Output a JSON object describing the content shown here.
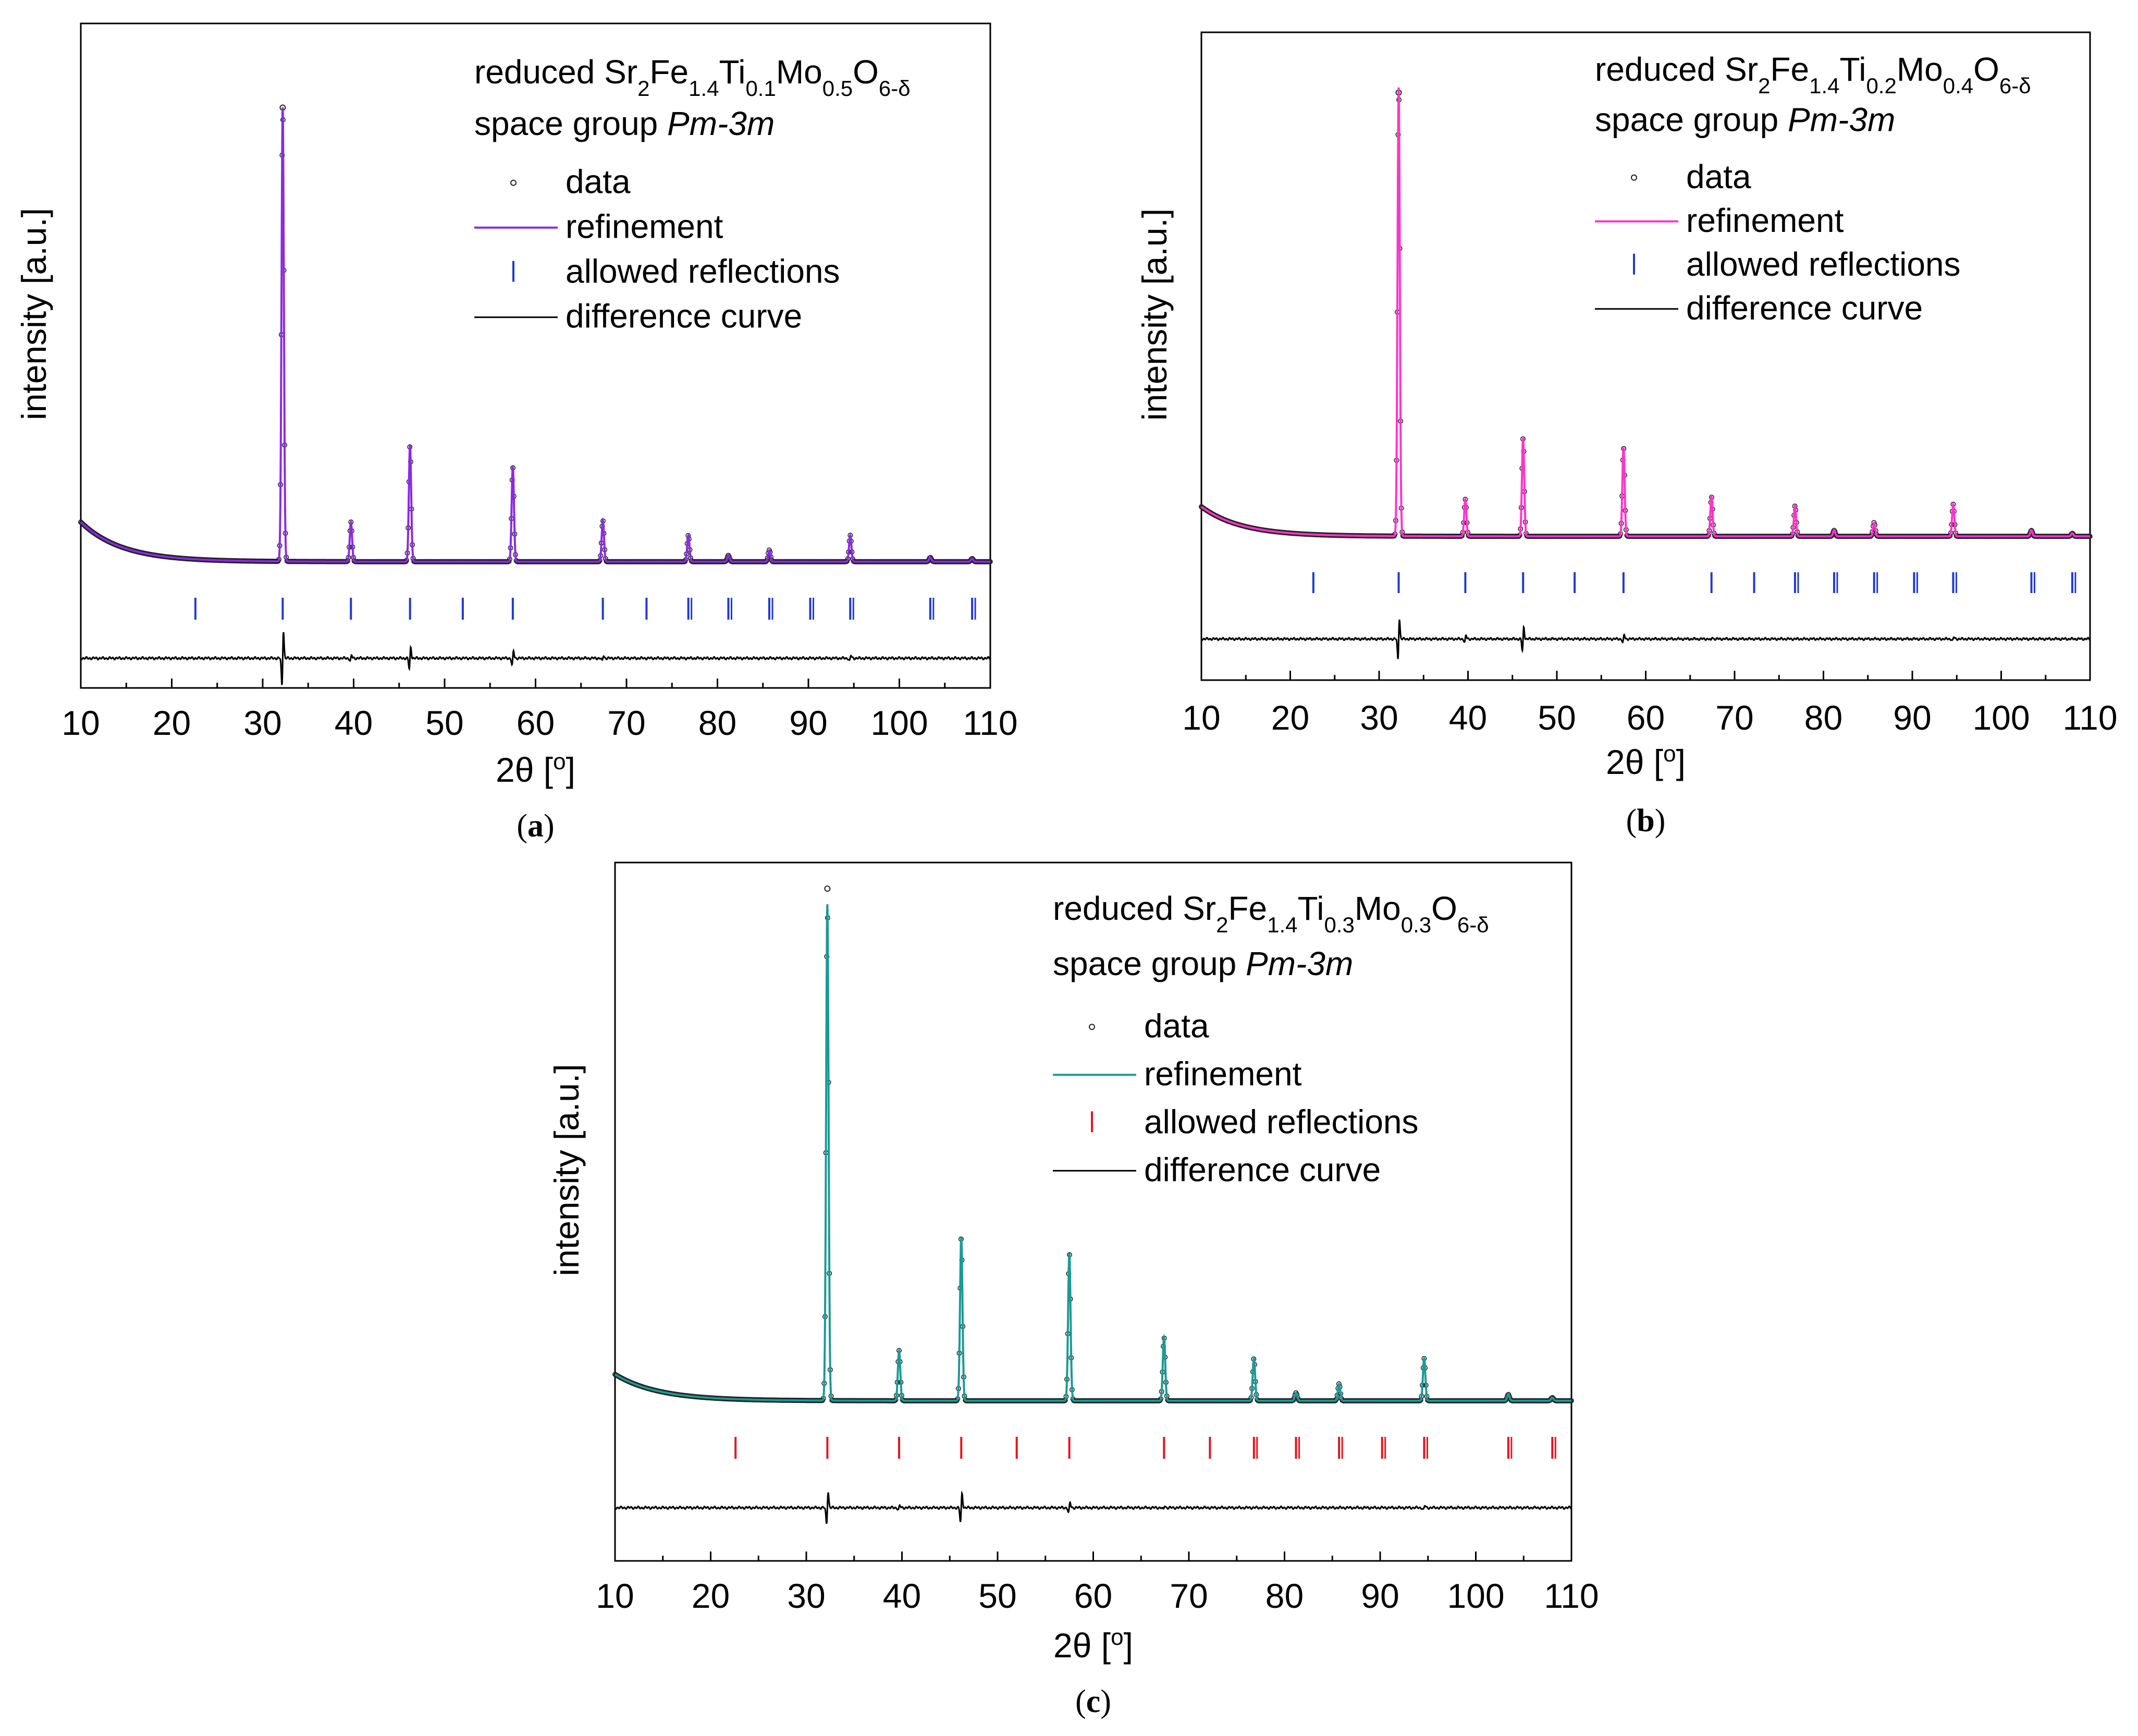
{
  "chart_data": [
    {
      "type": "line",
      "panel": "(a)",
      "caption": {
        "open": "(",
        "letter": "a",
        "close": ")"
      },
      "formula": {
        "prefix": "reduced Sr",
        "parts": [
          {
            "t": "2",
            "sub": true
          },
          {
            "t": "Fe",
            "sub": false
          },
          {
            "t": "1.4",
            "sub": true
          },
          {
            "t": "Ti",
            "sub": false
          },
          {
            "t": "0.1",
            "sub": true
          },
          {
            "t": "Mo",
            "sub": false
          },
          {
            "t": "0.5",
            "sub": true
          },
          {
            "t": "O",
            "sub": false
          },
          {
            "t": "6-δ",
            "sub": true
          }
        ]
      },
      "space_group_prefix": "space group ",
      "space_group": "Pm-3m",
      "legend": [
        "data",
        "refinement",
        "allowed reflections",
        "difference curve"
      ],
      "colors": {
        "data": "#222222",
        "refinement": "#8a2be2",
        "reflections": "#1f3ad1",
        "difference": "#000000"
      },
      "xlabel": "2θ [",
      "xlabel_unit": "o",
      "xlabel_close": "]",
      "ylabel": "intensity [a.u.]",
      "xlim": [
        10,
        110
      ],
      "x_ticks": [
        10,
        20,
        30,
        40,
        50,
        60,
        70,
        80,
        90,
        100,
        110
      ],
      "background": {
        "start": 0.075,
        "decay": 4.5,
        "base": 0.0
      },
      "peaks": [
        {
          "x": 32.2,
          "h": 0.86
        },
        {
          "x": 39.7,
          "h": 0.075
        },
        {
          "x": 46.2,
          "h": 0.22
        },
        {
          "x": 57.5,
          "h": 0.18
        },
        {
          "x": 67.4,
          "h": 0.078
        },
        {
          "x": 76.8,
          "h": 0.05
        },
        {
          "x": 81.2,
          "h": 0.012
        },
        {
          "x": 85.7,
          "h": 0.022
        },
        {
          "x": 94.6,
          "h": 0.05
        },
        {
          "x": 103.4,
          "h": 0.008
        },
        {
          "x": 108.0,
          "h": 0.006
        }
      ],
      "reflections": [
        22.6,
        32.2,
        39.7,
        46.2,
        52.0,
        57.5,
        67.4,
        72.2,
        76.8,
        81.2,
        85.7,
        90.2,
        94.6,
        103.4,
        108.0
      ],
      "difference_spikes": [
        {
          "x": 32.2,
          "a": 0.075
        },
        {
          "x": 46.2,
          "a": 0.03
        },
        {
          "x": 57.5,
          "a": 0.02
        },
        {
          "x": 39.7,
          "a": 0.008
        },
        {
          "x": 67.4,
          "a": 0.008
        },
        {
          "x": 94.6,
          "a": 0.008
        }
      ],
      "data_point_max": 0.88
    },
    {
      "type": "line",
      "panel": "(b)",
      "caption": {
        "open": "(",
        "letter": "b",
        "close": ")"
      },
      "formula": {
        "prefix": "reduced Sr",
        "parts": [
          {
            "t": "2",
            "sub": true
          },
          {
            "t": "Fe",
            "sub": false
          },
          {
            "t": "1.4",
            "sub": true
          },
          {
            "t": "Ti",
            "sub": false
          },
          {
            "t": "0.2",
            "sub": true
          },
          {
            "t": "Mo",
            "sub": false
          },
          {
            "t": "0.4",
            "sub": true
          },
          {
            "t": "O",
            "sub": false
          },
          {
            "t": "6-δ",
            "sub": true
          }
        ]
      },
      "space_group_prefix": "space group ",
      "space_group": "Pm-3m",
      "legend": [
        "data",
        "refinement",
        "allowed reflections",
        "difference curve"
      ],
      "colors": {
        "data": "#222222",
        "refinement": "#ff33cc",
        "reflections": "#1f3ad1",
        "difference": "#000000"
      },
      "xlabel": "2θ [",
      "xlabel_unit": "o",
      "xlabel_close": "]",
      "ylabel": "intensity [a.u.]",
      "xlim": [
        10,
        110
      ],
      "x_ticks": [
        10,
        20,
        30,
        40,
        50,
        60,
        70,
        80,
        90,
        100,
        110
      ],
      "background": {
        "start": 0.06,
        "decay": 4.5,
        "base": 0.0
      },
      "peaks": [
        {
          "x": 32.2,
          "h": 0.91
        },
        {
          "x": 39.7,
          "h": 0.075
        },
        {
          "x": 46.2,
          "h": 0.2
        },
        {
          "x": 57.5,
          "h": 0.18
        },
        {
          "x": 67.4,
          "h": 0.08
        },
        {
          "x": 76.8,
          "h": 0.062
        },
        {
          "x": 81.2,
          "h": 0.012
        },
        {
          "x": 85.7,
          "h": 0.028
        },
        {
          "x": 94.6,
          "h": 0.065
        },
        {
          "x": 103.4,
          "h": 0.012
        },
        {
          "x": 108.0,
          "h": 0.006
        }
      ],
      "reflections": [
        22.6,
        32.2,
        39.7,
        46.2,
        52.0,
        57.5,
        67.4,
        72.2,
        76.8,
        81.2,
        85.7,
        90.2,
        94.6,
        103.4,
        108.0
      ],
      "difference_spikes": [
        {
          "x": 32.2,
          "a": 0.06
        },
        {
          "x": 46.2,
          "a": 0.035
        },
        {
          "x": 57.5,
          "a": 0.012
        },
        {
          "x": 39.7,
          "a": 0.01
        },
        {
          "x": 67.4,
          "a": 0.006
        },
        {
          "x": 94.6,
          "a": 0.006
        }
      ],
      "data_point_max": 0.92
    },
    {
      "type": "line",
      "panel": "(c)",
      "caption": {
        "open": "(",
        "letter": "c",
        "close": ")"
      },
      "formula": {
        "prefix": "reduced Sr",
        "parts": [
          {
            "t": "2",
            "sub": true
          },
          {
            "t": "Fe",
            "sub": false
          },
          {
            "t": "1.4",
            "sub": true
          },
          {
            "t": "Ti",
            "sub": false
          },
          {
            "t": "0.3",
            "sub": true
          },
          {
            "t": "Mo",
            "sub": false
          },
          {
            "t": "0.3",
            "sub": true
          },
          {
            "t": "O",
            "sub": false
          },
          {
            "t": "6-δ",
            "sub": true
          }
        ]
      },
      "space_group_prefix": "space group ",
      "space_group": "Pm-3m",
      "legend": [
        "data",
        "refinement",
        "allowed reflections",
        "difference curve"
      ],
      "colors": {
        "data": "#222222",
        "refinement": "#1a9a96",
        "reflections": "#e8141b",
        "difference": "#000000"
      },
      "xlabel": "2θ [",
      "xlabel_unit": "o",
      "xlabel_close": "]",
      "ylabel": "intensity [a.u.]",
      "xlim": [
        10,
        110
      ],
      "x_ticks": [
        10,
        20,
        30,
        40,
        50,
        60,
        70,
        80,
        90,
        100,
        110
      ],
      "background": {
        "start": 0.05,
        "decay": 4.5,
        "base": 0.0
      },
      "peaks": [
        {
          "x": 32.2,
          "h": 0.94
        },
        {
          "x": 39.7,
          "h": 0.095
        },
        {
          "x": 46.2,
          "h": 0.31
        },
        {
          "x": 57.5,
          "h": 0.28
        },
        {
          "x": 67.4,
          "h": 0.12
        },
        {
          "x": 76.8,
          "h": 0.08
        },
        {
          "x": 81.2,
          "h": 0.015
        },
        {
          "x": 85.7,
          "h": 0.032
        },
        {
          "x": 94.6,
          "h": 0.08
        },
        {
          "x": 103.4,
          "h": 0.012
        },
        {
          "x": 108.0,
          "h": 0.006
        }
      ],
      "reflections": [
        22.6,
        32.2,
        39.7,
        46.2,
        52.0,
        57.5,
        67.4,
        72.2,
        76.8,
        81.2,
        85.7,
        90.2,
        94.6,
        103.4,
        108.0
      ],
      "difference_spikes": [
        {
          "x": 32.2,
          "a": 0.045
        },
        {
          "x": 46.2,
          "a": 0.04
        },
        {
          "x": 57.5,
          "a": 0.014
        },
        {
          "x": 39.7,
          "a": 0.006
        },
        {
          "x": 67.4,
          "a": 0.006
        },
        {
          "x": 94.6,
          "a": 0.006
        }
      ],
      "data_point_max": 0.99
    }
  ]
}
